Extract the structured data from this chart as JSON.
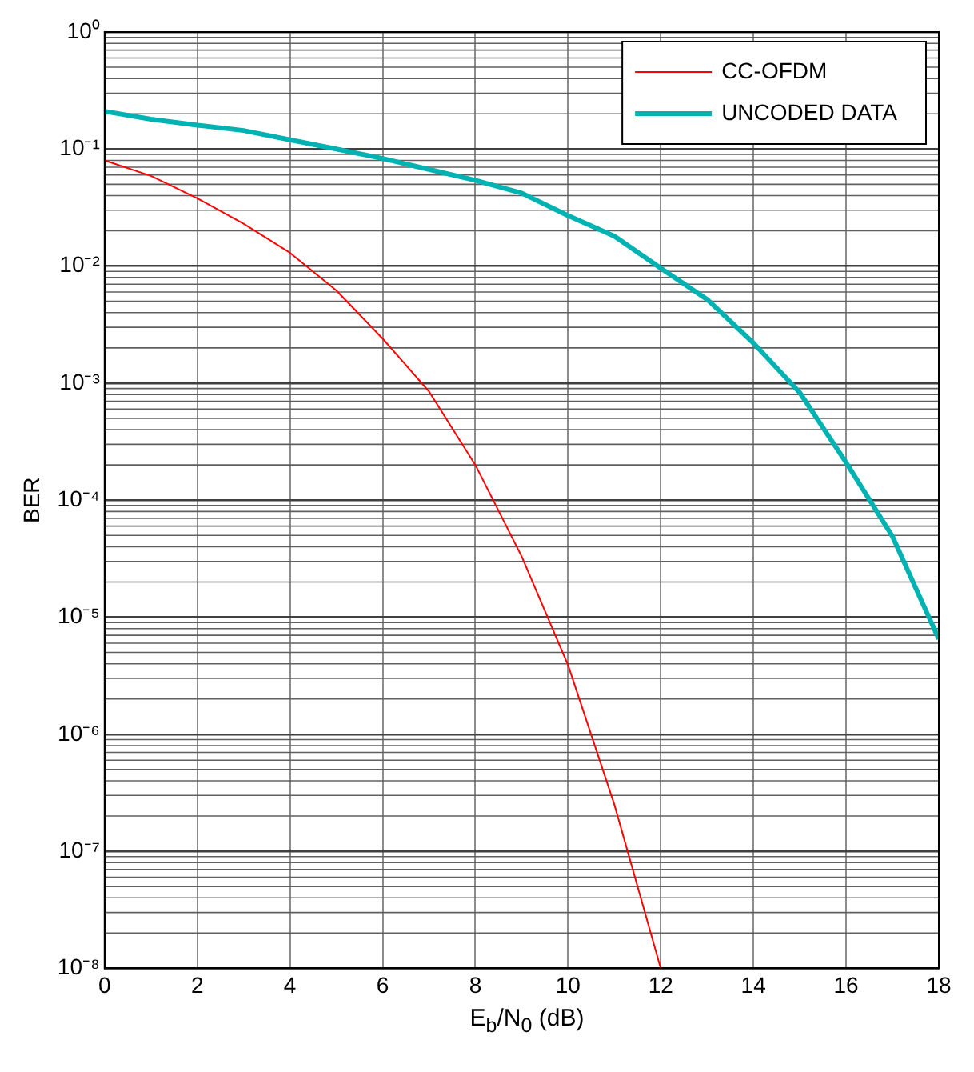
{
  "chart_data": {
    "type": "line",
    "xlabel": "E$_{b}$/N$_{0}$ (dB)",
    "ylabel": "BER",
    "log": "y",
    "grid": true,
    "legend": "top right",
    "marker": "none",
    "line_style": "solid",
    "xlim": [
      0,
      18
    ],
    "xticks": [
      0,
      2,
      4,
      6,
      8,
      10,
      12,
      14,
      16,
      18
    ],
    "ylim": [
      1e-08,
      1
    ],
    "yticks": [
      {
        "value": 1e-08,
        "label": "10⁻⁸"
      },
      {
        "value": 1e-07,
        "label": "10⁻⁷"
      },
      {
        "value": 1e-06,
        "label": "10⁻⁶"
      },
      {
        "value": 1e-05,
        "label": "10⁻⁵"
      },
      {
        "value": 0.0001,
        "label": "10⁻⁴"
      },
      {
        "value": 0.001,
        "label": "10⁻³"
      },
      {
        "value": 0.01,
        "label": "10⁻²"
      },
      {
        "value": 0.1,
        "label": "10⁻¹"
      },
      {
        "value": 1,
        "label": "10⁰"
      }
    ],
    "series": [
      {
        "name": "CC-OFDM",
        "color": "#ff0000",
        "x": [
          0,
          1,
          2,
          3,
          4,
          5,
          6,
          7,
          8,
          9,
          10,
          11,
          12
        ],
        "values": [
          0.08,
          0.059,
          0.038,
          0.023,
          0.013,
          0.0062,
          0.0024,
          0.00085,
          0.0002,
          3.3e-05,
          3.9e-06,
          2.5e-07,
          1e-08
        ]
      },
      {
        "name": "UNCODED DATA",
        "color": "#00b2b2",
        "x": [
          0,
          1,
          2,
          3,
          4,
          5,
          6,
          7,
          8,
          9,
          10,
          11,
          12,
          13,
          14,
          15,
          16,
          17,
          18
        ],
        "values": [
          0.21,
          0.18,
          0.16,
          0.144,
          0.12,
          0.1,
          0.083,
          0.067,
          0.054,
          0.042,
          0.027,
          0.018,
          0.0096,
          0.0052,
          0.0022,
          0.00083,
          0.00021,
          4.9e-05,
          6.5e-06
        ]
      }
    ]
  }
}
